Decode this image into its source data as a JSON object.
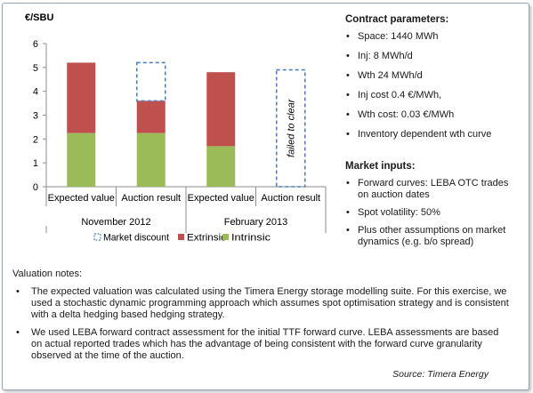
{
  "chart_data": {
    "type": "bar",
    "stacked": true,
    "ylabel": "€/SBU",
    "ylim": [
      0,
      6
    ],
    "yticks": [
      0,
      1,
      2,
      3,
      4,
      5,
      6
    ],
    "categories": [
      "Expected value",
      "Auction result",
      "Expected value",
      "Auction result"
    ],
    "groups": [
      {
        "label": "November 2012",
        "categories": [
          0,
          1
        ]
      },
      {
        "label": "February 2013",
        "categories": [
          2,
          3
        ]
      }
    ],
    "series": [
      {
        "name": "Intrinsic",
        "color": "#9bbb59",
        "values": [
          2.25,
          2.25,
          1.7,
          0
        ]
      },
      {
        "name": "Extrinsic",
        "color": "#c0504d",
        "values": [
          2.95,
          1.35,
          3.1,
          0
        ]
      },
      {
        "name": "Market discount",
        "color": "#4f81bd",
        "style": "dashed-outline",
        "values": [
          0,
          1.6,
          0,
          0
        ]
      }
    ],
    "legend_order": [
      "Market discount",
      "Extrinsic",
      "Intrinsic"
    ],
    "annotations": [
      {
        "category": 3,
        "text": "failed to clear",
        "style": "dashed-outline",
        "ymax": 4.9
      }
    ]
  },
  "contract": {
    "title": "Contract parameters:",
    "items": [
      "Space: 1440 MWh",
      "Inj: 8 MWh/d",
      "Wth 24 MWh/d",
      "Inj cost 0.4 €/MWh,",
      "Wth cost: 0.03 €/MWh",
      "Inventory dependent wth curve"
    ]
  },
  "market": {
    "title": "Market inputs:",
    "items": [
      "Forward curves: LEBA OTC trades on auction dates",
      "Spot volatility:  50%",
      "Plus other assumptions on market dynamics (e.g. b/o spread)"
    ]
  },
  "notes": {
    "title": "Valuation notes:",
    "items": [
      "The expected valuation was calculated  using the Timera Energy storage modelling suite. For this exercise, we used a stochastic dynamic programming approach which assumes spot optimisation strategy and is consistent with a  delta  hedging based hedging strategy.",
      "We used LEBA forward contract assessment for the initial  TTF forward curve.  LEBA assessments are based on actual reported trades which has the advantage of being consistent with the forward curve granularity observed at the time of the auction."
    ]
  },
  "source": "Source: Timera Energy"
}
